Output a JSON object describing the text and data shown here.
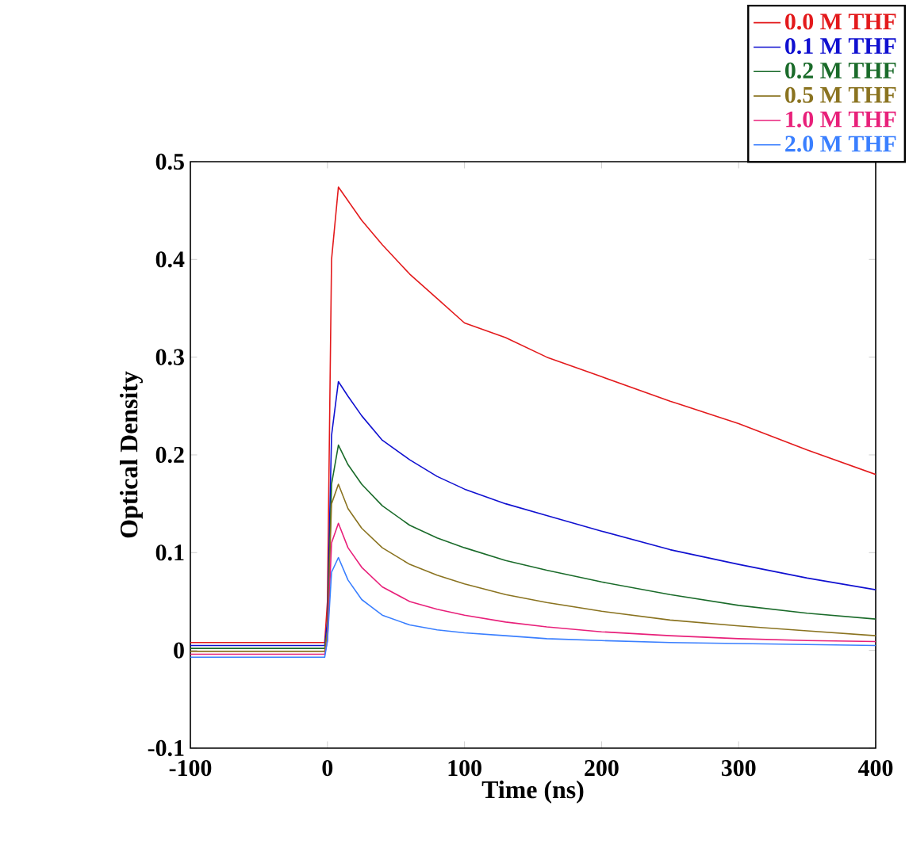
{
  "chart_data": {
    "type": "line",
    "xlabel": "Time (ns)",
    "ylabel": "Optical Density",
    "xlim": [
      -100,
      400
    ],
    "ylim": [
      -0.1,
      0.5
    ],
    "xticks": [
      -100,
      0,
      100,
      200,
      300,
      400
    ],
    "yticks": [
      -0.1,
      0,
      0.1,
      0.2,
      0.3,
      0.4,
      0.5
    ],
    "legend": "top right",
    "grid": false,
    "marker": "none",
    "line_style": "solid",
    "x": [
      -100,
      -50,
      -10,
      -2,
      0,
      3,
      8,
      15,
      25,
      40,
      60,
      80,
      100,
      130,
      160,
      200,
      250,
      300,
      350,
      400
    ],
    "series": [
      {
        "name": "0.0 M THF",
        "color": "#e31a1c",
        "values": [
          0.008,
          0.008,
          0.008,
          0.008,
          0.05,
          0.4,
          0.474,
          0.46,
          0.44,
          0.415,
          0.385,
          0.36,
          0.335,
          0.32,
          0.3,
          0.28,
          0.255,
          0.232,
          0.205,
          0.18
        ]
      },
      {
        "name": "0.1 M THF",
        "color": "#1010d0",
        "values": [
          0.005,
          0.005,
          0.005,
          0.005,
          0.03,
          0.22,
          0.275,
          0.26,
          0.24,
          0.215,
          0.195,
          0.178,
          0.165,
          0.15,
          0.138,
          0.122,
          0.103,
          0.088,
          0.074,
          0.062
        ]
      },
      {
        "name": "0.2 M THF",
        "color": "#1a6b2a",
        "values": [
          0.002,
          0.002,
          0.002,
          0.002,
          0.02,
          0.17,
          0.21,
          0.19,
          0.17,
          0.148,
          0.128,
          0.115,
          0.105,
          0.092,
          0.082,
          0.07,
          0.057,
          0.046,
          0.038,
          0.032
        ]
      },
      {
        "name": "0.5 M THF",
        "color": "#8a7320",
        "values": [
          -0.001,
          -0.001,
          -0.001,
          -0.001,
          0.02,
          0.15,
          0.17,
          0.145,
          0.125,
          0.105,
          0.088,
          0.077,
          0.068,
          0.057,
          0.049,
          0.04,
          0.031,
          0.025,
          0.02,
          0.015
        ]
      },
      {
        "name": "1.0 M THF",
        "color": "#e8207a",
        "values": [
          -0.004,
          -0.004,
          -0.004,
          -0.004,
          0.01,
          0.11,
          0.13,
          0.105,
          0.085,
          0.065,
          0.05,
          0.042,
          0.036,
          0.029,
          0.024,
          0.019,
          0.015,
          0.012,
          0.01,
          0.009
        ]
      },
      {
        "name": "2.0 M THF",
        "color": "#3a7fff",
        "values": [
          -0.007,
          -0.007,
          -0.007,
          -0.007,
          0.01,
          0.08,
          0.095,
          0.072,
          0.052,
          0.036,
          0.026,
          0.021,
          0.018,
          0.015,
          0.012,
          0.01,
          0.008,
          0.007,
          0.006,
          0.005
        ]
      }
    ]
  }
}
